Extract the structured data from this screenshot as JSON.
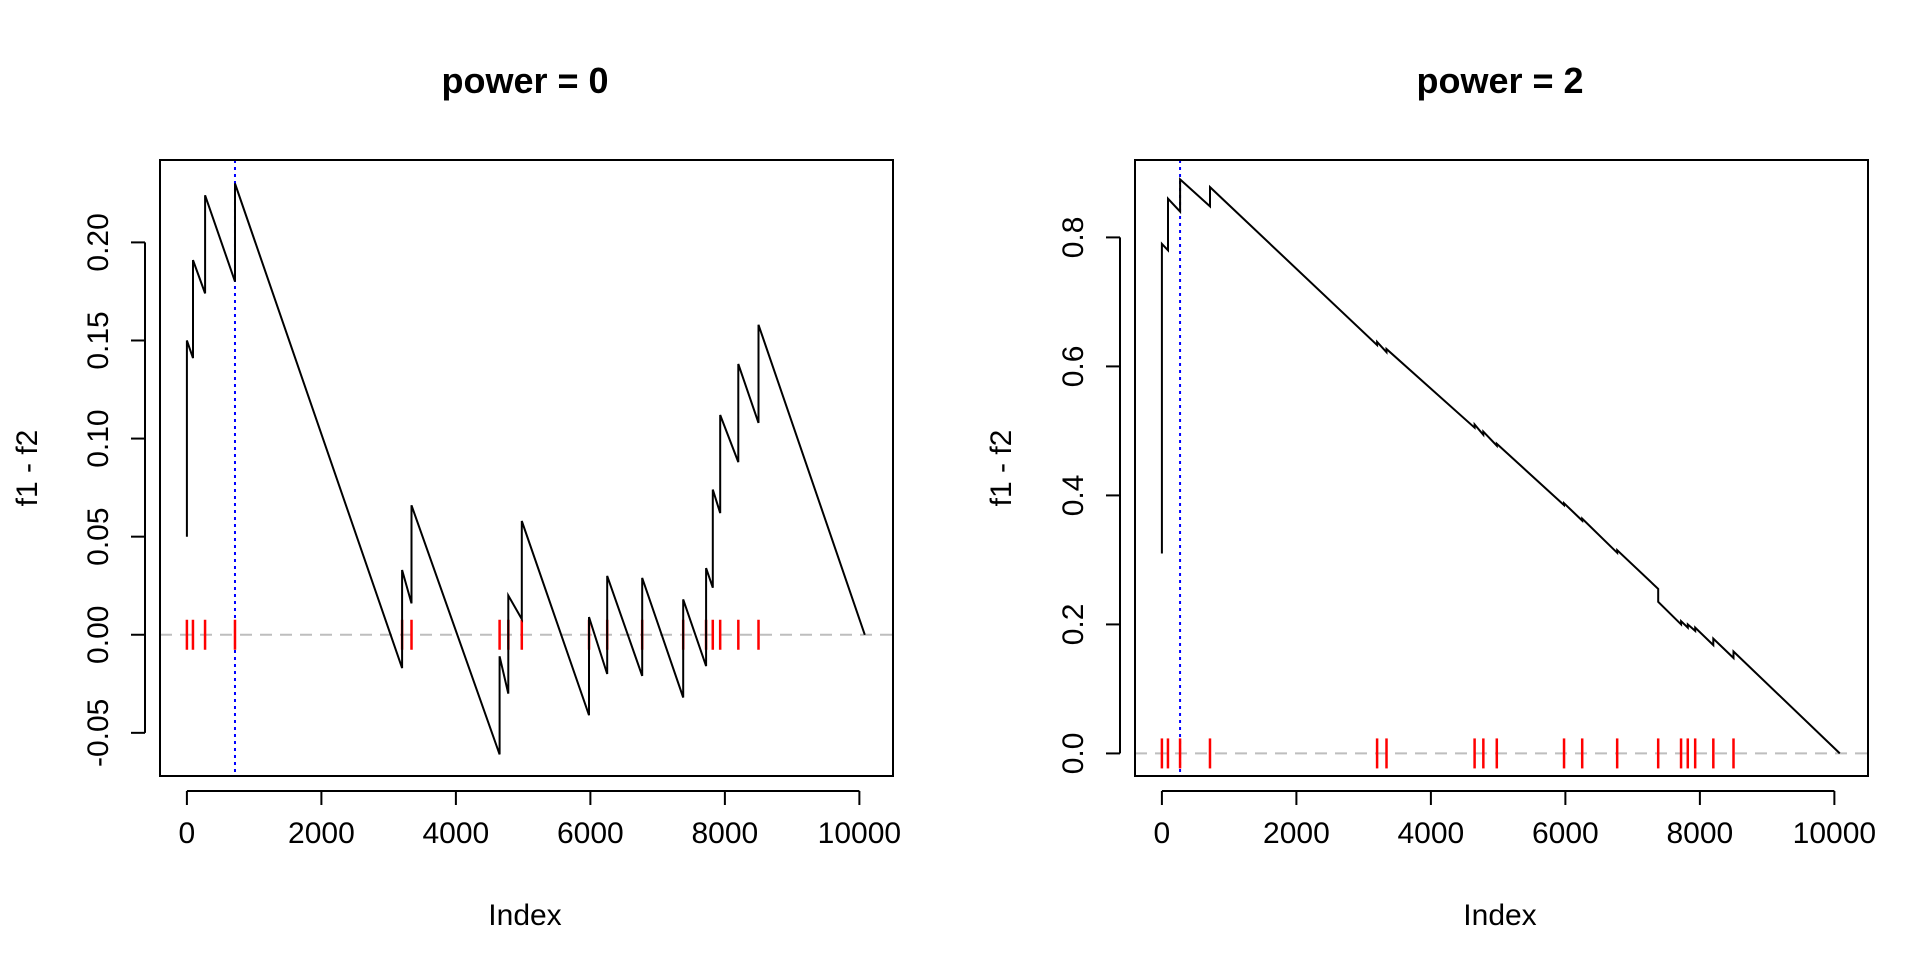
{
  "chart_data": [
    {
      "type": "line",
      "title": "power = 0",
      "xlabel": "Index",
      "ylabel": "f1 - f2",
      "xlim": [
        -400,
        10500
      ],
      "ylim": [
        -0.072,
        0.242
      ],
      "x_ticks": [
        0,
        2000,
        4000,
        6000,
        8000,
        10000
      ],
      "x_tick_labels": [
        "0",
        "2000",
        "4000",
        "6000",
        "8000",
        "10000"
      ],
      "y_ticks": [
        -0.05,
        0.0,
        0.05,
        0.1,
        0.15,
        0.2
      ],
      "y_tick_labels": [
        "-0.05",
        "0.00",
        "0.05",
        "0.10",
        "0.15",
        "0.20"
      ],
      "series": [
        {
          "name": "f1 - f2",
          "color": "#000000",
          "x": [
            0,
            0,
            90,
            90,
            270,
            270,
            715,
            715,
            3200,
            3200,
            3340,
            3340,
            4650,
            4650,
            4780,
            4780,
            4980,
            4980,
            5980,
            5980,
            6250,
            6250,
            6770,
            6770,
            7380,
            7380,
            7720,
            7720,
            7820,
            7820,
            7930,
            7930,
            8200,
            8200,
            8500,
            8500,
            10080
          ],
          "y": [
            0.05,
            0.15,
            0.141,
            0.191,
            0.174,
            0.224,
            0.18,
            0.23,
            -0.017,
            0.033,
            0.016,
            0.066,
            -0.061,
            -0.011,
            -0.03,
            0.02,
            0.008,
            0.058,
            -0.041,
            0.009,
            -0.02,
            0.03,
            -0.021,
            0.029,
            -0.032,
            0.018,
            -0.016,
            0.034,
            0.024,
            0.074,
            0.062,
            0.112,
            0.088,
            0.138,
            0.108,
            0.158,
            0.0
          ]
        }
      ],
      "reference_hline": {
        "y": 0.0,
        "color": "#bebebe",
        "style": "dashed"
      },
      "reference_vline": {
        "x": 715,
        "color": "#0000ff",
        "style": "dotted"
      },
      "rug": {
        "y": 0.0,
        "color": "#ff0000",
        "x": [
          0,
          90,
          270,
          715,
          3200,
          3340,
          4650,
          4780,
          4980,
          5980,
          6250,
          6770,
          7380,
          7720,
          7820,
          7930,
          8200,
          8500
        ]
      }
    },
    {
      "type": "line",
      "title": "power = 2",
      "xlabel": "Index",
      "ylabel": "f1 - f2",
      "xlim": [
        -400,
        10500
      ],
      "ylim": [
        -0.035,
        0.92
      ],
      "x_ticks": [
        0,
        2000,
        4000,
        6000,
        8000,
        10000
      ],
      "x_tick_labels": [
        "0",
        "2000",
        "4000",
        "6000",
        "8000",
        "10000"
      ],
      "y_ticks": [
        0.0,
        0.2,
        0.4,
        0.6,
        0.8
      ],
      "y_tick_labels": [
        "0.0",
        "0.2",
        "0.4",
        "0.6",
        "0.8"
      ],
      "series": [
        {
          "name": "f1 - f2",
          "color": "#000000",
          "x": [
            0,
            0,
            90,
            90,
            270,
            270,
            715,
            715,
            3200,
            3200,
            3340,
            3340,
            4650,
            4650,
            4780,
            4780,
            4980,
            4980,
            5980,
            5980,
            6250,
            6250,
            6770,
            6770,
            7380,
            7380,
            7720,
            7720,
            7820,
            7820,
            7930,
            7930,
            8200,
            8200,
            8500,
            8500,
            10080
          ],
          "y": [
            0.31,
            0.79,
            0.78,
            0.86,
            0.84,
            0.89,
            0.848,
            0.878,
            0.633,
            0.638,
            0.622,
            0.627,
            0.505,
            0.51,
            0.494,
            0.499,
            0.477,
            0.48,
            0.385,
            0.388,
            0.361,
            0.364,
            0.311,
            0.315,
            0.255,
            0.235,
            0.2,
            0.205,
            0.195,
            0.2,
            0.19,
            0.195,
            0.168,
            0.178,
            0.148,
            0.158,
            0.0
          ]
        }
      ],
      "reference_hline": {
        "y": 0.0,
        "color": "#bebebe",
        "style": "dashed"
      },
      "reference_vline": {
        "x": 270,
        "color": "#0000ff",
        "style": "dotted"
      },
      "rug": {
        "y": 0.0,
        "color": "#ff0000",
        "x": [
          0,
          90,
          270,
          715,
          3200,
          3340,
          4650,
          4780,
          4980,
          5980,
          6250,
          6770,
          7380,
          7720,
          7820,
          7930,
          8200,
          8500
        ]
      }
    }
  ]
}
